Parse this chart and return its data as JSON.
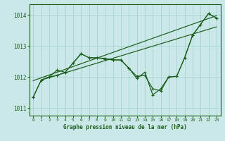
{
  "title": "Graphe pression niveau de la mer (hPa)",
  "bg_color": "#cbe8e8",
  "grid_color": "#aad4d4",
  "line_color": "#1a5c1a",
  "xlim": [
    -0.5,
    23.5
  ],
  "ylim": [
    1010.75,
    1014.35
  ],
  "yticks": [
    1011,
    1012,
    1013,
    1014
  ],
  "xticks": [
    0,
    1,
    2,
    3,
    4,
    5,
    6,
    7,
    8,
    9,
    10,
    11,
    12,
    13,
    14,
    15,
    16,
    17,
    18,
    19,
    20,
    21,
    22,
    23
  ],
  "line1_y": [
    1011.35,
    1011.9,
    1012.0,
    1012.05,
    1012.15,
    1012.45,
    1012.75,
    1012.62,
    1012.62,
    1012.6,
    1012.55,
    1012.55,
    1012.28,
    1011.95,
    1012.15,
    1011.42,
    1011.62,
    1012.0,
    1012.02,
    1012.62,
    1013.35,
    1013.7,
    1014.05,
    1013.9
  ],
  "line2_y": [
    1011.35,
    1011.9,
    1012.0,
    1012.22,
    1012.15,
    1012.45,
    1012.75,
    1012.62,
    1012.62,
    1012.58,
    1012.55,
    1012.55,
    1012.28,
    1012.02,
    1012.05,
    1011.62,
    1011.55,
    1012.0,
    1012.02,
    1012.62,
    1013.35,
    1013.7,
    1014.05,
    1013.9
  ],
  "trend1_x": [
    0,
    23
  ],
  "trend1_y": [
    1011.88,
    1013.98
  ],
  "trend2_x": [
    1,
    23
  ],
  "trend2_y": [
    1011.9,
    1013.62
  ]
}
